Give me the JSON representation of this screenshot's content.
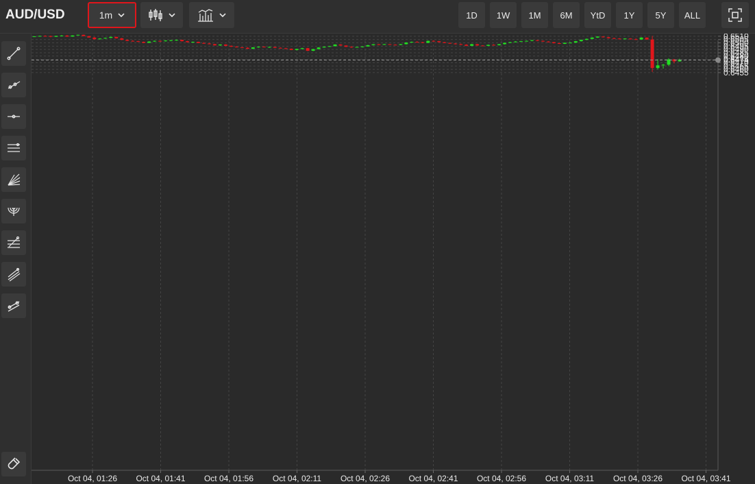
{
  "header": {
    "symbol": "AUD/USD",
    "interval": "1m",
    "chart_type_icon": "candlestick-icon",
    "indicators_icon": "indicators-icon",
    "ranges": [
      "1D",
      "1W",
      "1M",
      "6M",
      "YtD",
      "1Y",
      "5Y",
      "ALL"
    ]
  },
  "toolbar": {
    "tools": [
      "trend-line-icon",
      "ray-icon",
      "horizontal-line-icon",
      "parallel-channel-icon",
      "fib-fan-icon",
      "fib-arc-icon",
      "fib-retracement-icon",
      "pitchfork-icon",
      "measure-icon"
    ],
    "magnet_icon": "magnet-icon"
  },
  "colors": {
    "up": "#22dd22",
    "down": "#e0161b",
    "background": "#2a2a2a",
    "grid": "#444444"
  },
  "chart_data": {
    "type": "candlestick",
    "ylim": [
      0.645,
      0.6514
    ],
    "y_ticks": [
      "0.6455",
      "0.6460",
      "0.6465",
      "0.6470",
      "0.6475",
      "0.6480",
      "0.6485",
      "0.6490",
      "0.6495",
      "0.6500",
      "0.6505",
      "0.6510"
    ],
    "x_ticks": [
      "Oct 04, 01:26",
      "Oct 04, 01:41",
      "Oct 04, 01:56",
      "Oct 04, 02:11",
      "Oct 04, 02:26",
      "Oct 04, 02:41",
      "Oct 04, 02:56",
      "Oct 04, 03:11",
      "Oct 04, 03:26",
      "Oct 04, 03:41"
    ],
    "last_price": "0.6474",
    "last_value": 0.6474,
    "grid": true,
    "candles": [
      [
        0.65095,
        0.65102,
        0.6509,
        0.65098
      ],
      [
        0.65098,
        0.6511,
        0.65095,
        0.65105
      ],
      [
        0.65105,
        0.65115,
        0.651,
        0.65103
      ],
      [
        0.65103,
        0.6511,
        0.65085,
        0.65092
      ],
      [
        0.65092,
        0.65108,
        0.65088,
        0.65105
      ],
      [
        0.65105,
        0.65118,
        0.651,
        0.6511
      ],
      [
        0.6511,
        0.6512,
        0.6509,
        0.65095
      ],
      [
        0.65095,
        0.65115,
        0.65092,
        0.65112
      ],
      [
        0.65112,
        0.65125,
        0.6511,
        0.65122
      ],
      [
        0.65122,
        0.65125,
        0.651,
        0.65102
      ],
      [
        0.65102,
        0.65105,
        0.65085,
        0.6508
      ],
      [
        0.6508,
        0.6509,
        0.6505,
        0.65055
      ],
      [
        0.65055,
        0.6507,
        0.6505,
        0.65065
      ],
      [
        0.65065,
        0.6508,
        0.6506,
        0.65075
      ],
      [
        0.65075,
        0.65095,
        0.6507,
        0.6509
      ],
      [
        0.6509,
        0.65093,
        0.65065,
        0.65068
      ],
      [
        0.65068,
        0.65075,
        0.6504,
        0.65045
      ],
      [
        0.65045,
        0.6505,
        0.65025,
        0.6503
      ],
      [
        0.6503,
        0.6504,
        0.6502,
        0.65025
      ],
      [
        0.65025,
        0.6503,
        0.6501,
        0.65015
      ],
      [
        0.65015,
        0.6502,
        0.64995,
        0.65
      ],
      [
        0.65,
        0.65025,
        0.64998,
        0.6502
      ],
      [
        0.6502,
        0.65035,
        0.65015,
        0.6503
      ],
      [
        0.6503,
        0.65035,
        0.65018,
        0.65025
      ],
      [
        0.65025,
        0.6504,
        0.6502,
        0.65035
      ],
      [
        0.65035,
        0.65045,
        0.65025,
        0.6504
      ],
      [
        0.6504,
        0.6505,
        0.6503,
        0.65045
      ],
      [
        0.65045,
        0.65048,
        0.6502,
        0.65025
      ],
      [
        0.65025,
        0.6503,
        0.65005,
        0.6501
      ],
      [
        0.6501,
        0.6502,
        0.65002,
        0.65015
      ],
      [
        0.65015,
        0.65018,
        0.64995,
        0.64998
      ],
      [
        0.64998,
        0.65008,
        0.64985,
        0.6499
      ],
      [
        0.6499,
        0.65,
        0.64978,
        0.6498
      ],
      [
        0.6498,
        0.64985,
        0.6496,
        0.64962
      ],
      [
        0.64962,
        0.64978,
        0.64955,
        0.64975
      ],
      [
        0.64975,
        0.64978,
        0.6495,
        0.64955
      ],
      [
        0.64955,
        0.6496,
        0.64938,
        0.64942
      ],
      [
        0.64942,
        0.6495,
        0.6493,
        0.64932
      ],
      [
        0.64932,
        0.6494,
        0.64922,
        0.64925
      ],
      [
        0.64925,
        0.64935,
        0.64905,
        0.6491
      ],
      [
        0.6491,
        0.64935,
        0.64905,
        0.64932
      ],
      [
        0.64932,
        0.64945,
        0.64925,
        0.64942
      ],
      [
        0.64942,
        0.64948,
        0.6493,
        0.64935
      ],
      [
        0.64935,
        0.64945,
        0.64925,
        0.64938
      ],
      [
        0.64938,
        0.64942,
        0.6492,
        0.64925
      ],
      [
        0.64925,
        0.64932,
        0.64915,
        0.64918
      ],
      [
        0.64918,
        0.64925,
        0.64905,
        0.6491
      ],
      [
        0.6491,
        0.64915,
        0.6489,
        0.64892
      ],
      [
        0.64892,
        0.64912,
        0.64885,
        0.64908
      ],
      [
        0.64908,
        0.64925,
        0.649,
        0.6492
      ],
      [
        0.6492,
        0.64925,
        0.64875,
        0.6488
      ],
      [
        0.6488,
        0.6491,
        0.64875,
        0.64905
      ],
      [
        0.64905,
        0.64935,
        0.649,
        0.6493
      ],
      [
        0.6493,
        0.64945,
        0.64925,
        0.64942
      ],
      [
        0.64942,
        0.64955,
        0.64938,
        0.6495
      ],
      [
        0.6495,
        0.64978,
        0.64945,
        0.64975
      ],
      [
        0.64975,
        0.6498,
        0.64955,
        0.6496
      ],
      [
        0.6496,
        0.64962,
        0.64935,
        0.6494
      ],
      [
        0.6494,
        0.6495,
        0.64925,
        0.6493
      ],
      [
        0.6493,
        0.64942,
        0.64928,
        0.64938
      ],
      [
        0.64938,
        0.6495,
        0.6493,
        0.64945
      ],
      [
        0.64945,
        0.6497,
        0.64942,
        0.64965
      ],
      [
        0.64965,
        0.64982,
        0.6496,
        0.64978
      ],
      [
        0.64978,
        0.64985,
        0.64968,
        0.64975
      ],
      [
        0.64975,
        0.64985,
        0.6497,
        0.6498
      ],
      [
        0.6498,
        0.64982,
        0.64968,
        0.64972
      ],
      [
        0.64972,
        0.64978,
        0.64965,
        0.64968
      ],
      [
        0.64968,
        0.64985,
        0.64965,
        0.6498
      ],
      [
        0.6498,
        0.6501,
        0.64975,
        0.65005
      ],
      [
        0.65005,
        0.6502,
        0.65,
        0.65015
      ],
      [
        0.65015,
        0.65025,
        0.65005,
        0.6501
      ],
      [
        0.6501,
        0.65015,
        0.64995,
        0.65
      ],
      [
        0.65,
        0.65035,
        0.64995,
        0.6503
      ],
      [
        0.6503,
        0.65038,
        0.6502,
        0.65025
      ],
      [
        0.65025,
        0.6503,
        0.65005,
        0.6501
      ],
      [
        0.6501,
        0.65015,
        0.64995,
        0.64998
      ],
      [
        0.64998,
        0.65005,
        0.64985,
        0.6499
      ],
      [
        0.6499,
        0.64995,
        0.64975,
        0.6498
      ],
      [
        0.6498,
        0.6499,
        0.64965,
        0.64972
      ],
      [
        0.64972,
        0.6498,
        0.6495,
        0.64955
      ],
      [
        0.64955,
        0.64985,
        0.6495,
        0.6498
      ],
      [
        0.6498,
        0.64985,
        0.64955,
        0.6496
      ],
      [
        0.6496,
        0.64965,
        0.64948,
        0.64955
      ],
      [
        0.64955,
        0.64975,
        0.6495,
        0.6497
      ],
      [
        0.6497,
        0.6498,
        0.6496,
        0.64965
      ],
      [
        0.64965,
        0.64985,
        0.6496,
        0.6498
      ],
      [
        0.6498,
        0.65005,
        0.64975,
        0.65
      ],
      [
        0.65,
        0.65015,
        0.64995,
        0.6501
      ],
      [
        0.6501,
        0.65025,
        0.65005,
        0.6502
      ],
      [
        0.6502,
        0.6503,
        0.65015,
        0.65025
      ],
      [
        0.65025,
        0.65035,
        0.6502,
        0.6503
      ],
      [
        0.6503,
        0.65045,
        0.65025,
        0.6504
      ],
      [
        0.6504,
        0.65045,
        0.65025,
        0.6503
      ],
      [
        0.6503,
        0.65035,
        0.65015,
        0.6502
      ],
      [
        0.6502,
        0.65025,
        0.65005,
        0.6501
      ],
      [
        0.6501,
        0.65015,
        0.6499,
        0.64995
      ],
      [
        0.64995,
        0.65005,
        0.64982,
        0.64985
      ],
      [
        0.64985,
        0.65005,
        0.64982,
        0.65
      ],
      [
        0.65,
        0.6501,
        0.64995,
        0.65003
      ],
      [
        0.65003,
        0.6503,
        0.65,
        0.65025
      ],
      [
        0.65025,
        0.6505,
        0.6502,
        0.65045
      ],
      [
        0.65045,
        0.65065,
        0.6504,
        0.6506
      ],
      [
        0.6506,
        0.65085,
        0.65055,
        0.6508
      ],
      [
        0.6508,
        0.651,
        0.65075,
        0.65095
      ],
      [
        0.65095,
        0.651,
        0.6508,
        0.65085
      ],
      [
        0.65085,
        0.6509,
        0.65065,
        0.6507
      ],
      [
        0.6507,
        0.6508,
        0.6506,
        0.65065
      ],
      [
        0.65065,
        0.65072,
        0.65055,
        0.6506
      ],
      [
        0.6506,
        0.6507,
        0.65052,
        0.65065
      ],
      [
        0.65065,
        0.6507,
        0.6505,
        0.65055
      ],
      [
        0.65055,
        0.6507,
        0.65045,
        0.6505
      ],
      [
        0.6505,
        0.65085,
        0.65045,
        0.6508
      ],
      [
        0.6508,
        0.65082,
        0.65045,
        0.6505
      ],
      [
        0.6505,
        0.65105,
        0.6456,
        0.6462
      ],
      [
        0.6462,
        0.6475,
        0.646,
        0.6466
      ],
      [
        0.6466,
        0.6468,
        0.6461,
        0.6467
      ],
      [
        0.6467,
        0.64765,
        0.6465,
        0.6475
      ],
      [
        0.6475,
        0.64755,
        0.6469,
        0.6472
      ],
      [
        0.6472,
        0.6476,
        0.64715,
        0.64745
      ]
    ]
  }
}
